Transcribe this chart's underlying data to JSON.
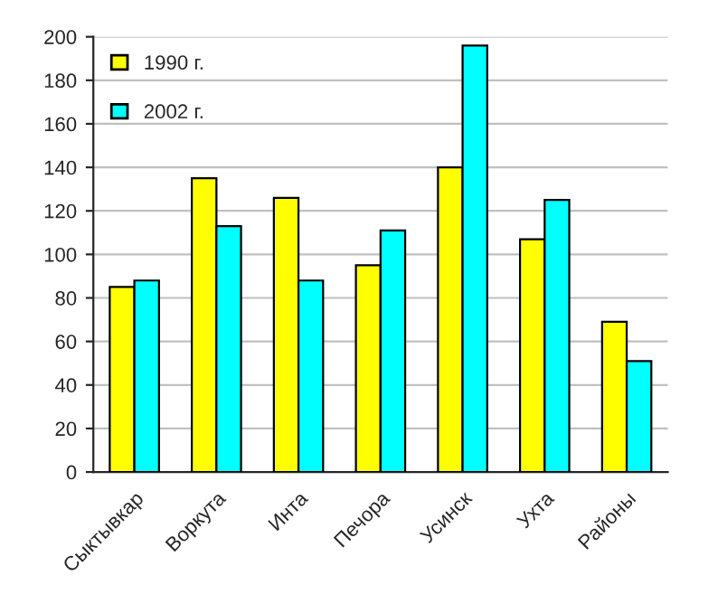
{
  "chart_data": {
    "type": "bar",
    "categories": [
      "Сыктывкар",
      "Воркута",
      "Инта",
      "Печора",
      "Усинск",
      "Ухта",
      "Районы"
    ],
    "series": [
      {
        "name": "1990 г.",
        "color": "#ffff00",
        "values": [
          85,
          135,
          126,
          95,
          140,
          107,
          69
        ]
      },
      {
        "name": "2002 г.",
        "color": "#00ffff",
        "values": [
          88,
          113,
          88,
          111,
          196,
          125,
          51
        ]
      }
    ],
    "ylim": [
      0,
      200
    ],
    "yticks": [
      0,
      20,
      40,
      60,
      80,
      100,
      120,
      140,
      160,
      180,
      200
    ],
    "grid": "y",
    "legend": "top left"
  }
}
